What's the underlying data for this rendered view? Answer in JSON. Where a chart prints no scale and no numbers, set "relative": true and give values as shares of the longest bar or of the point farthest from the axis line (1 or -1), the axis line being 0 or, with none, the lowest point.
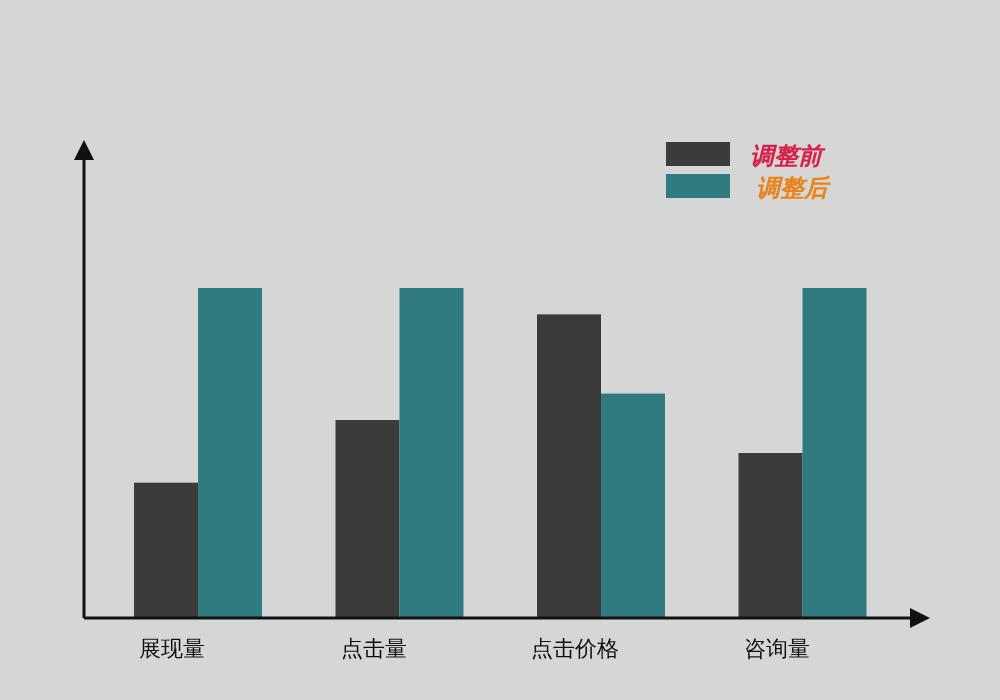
{
  "chart_data": {
    "type": "bar",
    "relative": true,
    "legend": "top right",
    "categories": [
      "展现量",
      "点击量",
      "点击价格",
      "咨询量"
    ],
    "series": [
      {
        "name": "调整前",
        "color": "#3b3b3b",
        "values": [
          0.41,
          0.6,
          0.92,
          0.5
        ]
      },
      {
        "name": "调整后",
        "color": "#2f7b80",
        "values": [
          1,
          1,
          0.68,
          1
        ]
      }
    ]
  }
}
